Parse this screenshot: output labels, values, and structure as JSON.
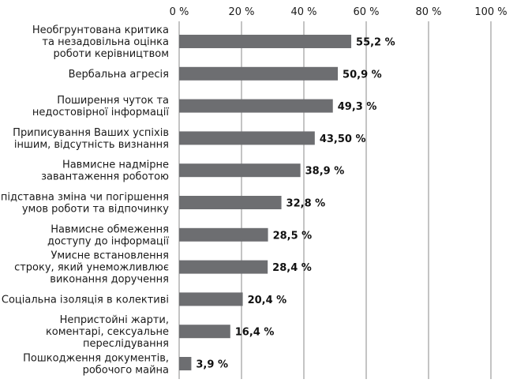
{
  "chart_data": {
    "type": "bar",
    "orientation": "horizontal",
    "title": "",
    "xlabel": "",
    "ylabel": "",
    "xlim": [
      0,
      100
    ],
    "ticks": [
      0,
      20,
      40,
      60,
      80,
      100
    ],
    "tick_labels": [
      "0 %",
      "20 %",
      "40 %",
      "60 %",
      "80 %",
      "100 %"
    ],
    "grid": true,
    "bar_color": "#6d6e71",
    "categories": [
      [
        "Необгрунтована критика",
        "та незадовільна оцінка",
        "роботи керівництвом"
      ],
      [
        "Вербальна агресія"
      ],
      [
        "Поширення чуток та",
        "недостовірної інформації"
      ],
      [
        "Приписування Ваших успіхів",
        "іншим, відсутність визнання"
      ],
      [
        "Навмисне надмірне",
        "завантаження роботою"
      ],
      [
        "Безпідставна зміна чи погіршення",
        "умов роботи та відпочинку"
      ],
      [
        "Навмисне обмеження",
        "доступу до інформації"
      ],
      [
        "Умисне встановлення",
        "строку, який унеможливлює",
        "виконання доручення"
      ],
      [
        "Соціальна ізоляція в колективі"
      ],
      [
        "Непристойні жарти,",
        "коментарі, сексуальне",
        "переслідування"
      ],
      [
        "Пошкодження документів,",
        "робочого майна"
      ]
    ],
    "values": [
      55.2,
      50.9,
      49.3,
      43.5,
      38.9,
      32.8,
      28.5,
      28.4,
      20.4,
      16.4,
      3.9
    ],
    "value_labels": [
      "55,2 %",
      "50,9 %",
      "49,3 %",
      "43,50 %",
      "38,9 %",
      "32,8 %",
      "28,5 %",
      "28,4 %",
      "20,4 %",
      "16,4 %",
      "3,9 %"
    ]
  }
}
